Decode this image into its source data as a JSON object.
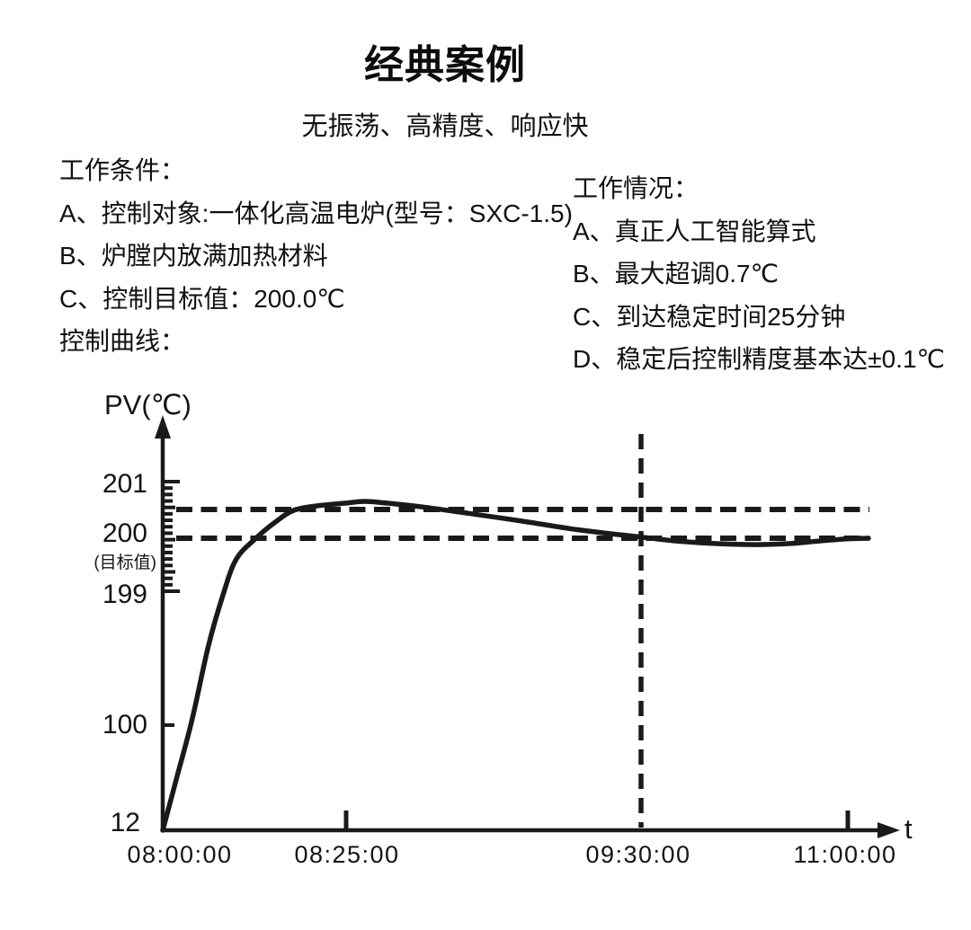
{
  "header": {
    "title": "经典案例",
    "subtitle": "无振荡、高精度、响应快"
  },
  "work_conditions": {
    "heading": "工作条件：",
    "items": [
      "A、控制对象:一体化高温电炉(型号：SXC-1.5)",
      "B、炉膛内放满加热材料",
      "C、控制目标值：200.0℃"
    ],
    "curve_label": "控制曲线："
  },
  "work_results": {
    "heading": "工作情况：",
    "items": [
      "A、真正人工智能算式",
      "B、最大超调0.7℃",
      "C、到达稳定时间25分钟",
      "D、稳定后控制精度基本达±0.1℃"
    ]
  },
  "chart_data": {
    "type": "line",
    "title": "控制曲线",
    "line_color": "#1a1a1a",
    "background": "#ffffff",
    "y_axis": {
      "label": "PV(℃)",
      "ticks": [
        "201",
        "200",
        "199",
        "100",
        "12"
      ],
      "target_note": "(目标值)",
      "scale_note_values": [
        12,
        100,
        199,
        200,
        201
      ]
    },
    "x_axis": {
      "label": "t",
      "ticks": [
        "08:00:00",
        "08:25:00",
        "09:30:00",
        "11:00:00"
      ]
    },
    "target_value": 200.0,
    "max_overshoot_c": 0.7,
    "reference_lines": {
      "horizontal_values": [
        200.5,
        200.0
      ],
      "vertical_time": "09:30:00"
    },
    "series": [
      {
        "name": "PV",
        "x_unit": "minutes after 08:00:00",
        "points": [
          [
            0,
            12
          ],
          [
            2,
            58
          ],
          [
            4,
            104
          ],
          [
            6.2,
            158
          ],
          [
            8.2,
            196
          ],
          [
            10,
            199.6
          ],
          [
            12.7,
            200.0
          ],
          [
            15.5,
            200.3
          ],
          [
            18,
            200.5
          ],
          [
            21.5,
            200.58
          ],
          [
            25,
            200.62
          ],
          [
            29,
            200.65
          ],
          [
            34,
            200.62
          ],
          [
            42,
            200.55
          ],
          [
            52,
            200.44
          ],
          [
            64,
            200.3
          ],
          [
            76,
            200.15
          ],
          [
            90,
            200.02
          ],
          [
            105,
            199.95
          ],
          [
            122,
            199.9
          ],
          [
            140,
            199.88
          ],
          [
            155,
            199.9
          ],
          [
            168,
            199.95
          ],
          [
            180,
            199.99
          ],
          [
            189,
            200.0
          ]
        ]
      }
    ]
  }
}
